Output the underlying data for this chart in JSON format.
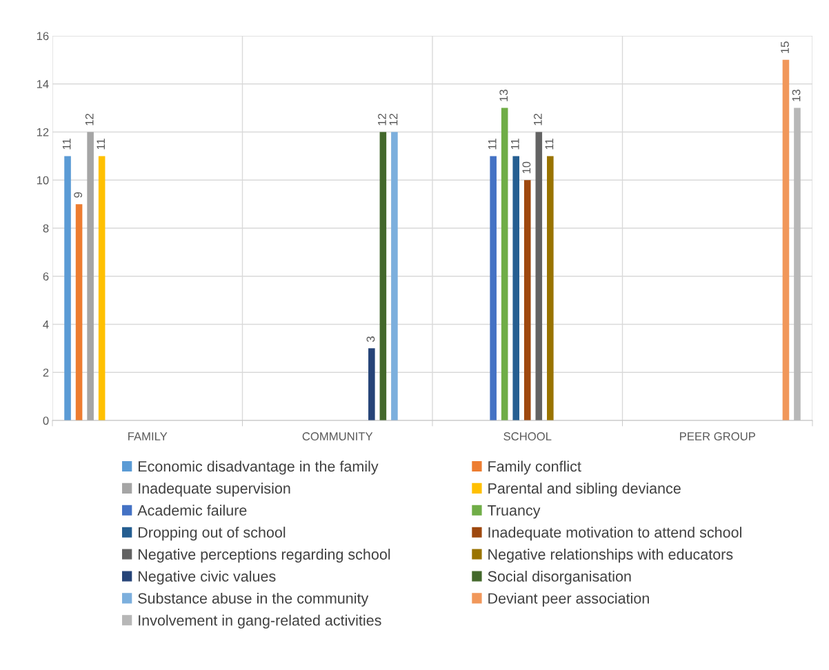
{
  "chart_data": {
    "type": "bar",
    "categories": [
      "FAMILY",
      "COMMUNITY",
      "SCHOOL",
      "PEER GROUP"
    ],
    "series": [
      {
        "name": "Economic disadvantage in the family",
        "color": "#5b9bd5",
        "values": [
          11,
          null,
          null,
          null
        ]
      },
      {
        "name": "Family conflict",
        "color": "#ed7d31",
        "values": [
          9,
          null,
          null,
          null
        ]
      },
      {
        "name": "Inadequate supervision",
        "color": "#a5a5a5",
        "values": [
          12,
          null,
          null,
          null
        ]
      },
      {
        "name": "Parental and sibling deviance",
        "color": "#ffc000",
        "values": [
          11,
          null,
          null,
          null
        ]
      },
      {
        "name": "Academic failure",
        "color": "#4472c4",
        "values": [
          null,
          null,
          11,
          null
        ]
      },
      {
        "name": "Truancy",
        "color": "#70ad47",
        "values": [
          null,
          null,
          13,
          null
        ]
      },
      {
        "name": "Dropping out of school",
        "color": "#255e91",
        "values": [
          null,
          null,
          11,
          null
        ]
      },
      {
        "name": "Inadequate motivation to attend school",
        "color": "#9e480e",
        "values": [
          null,
          null,
          10,
          null
        ]
      },
      {
        "name": "Negative perceptions regarding school",
        "color": "#636363",
        "values": [
          null,
          null,
          12,
          null
        ]
      },
      {
        "name": "Negative relationships with educators",
        "color": "#997300",
        "values": [
          null,
          null,
          11,
          null
        ]
      },
      {
        "name": "Negative civic values",
        "color": "#264478",
        "values": [
          null,
          3,
          null,
          null
        ]
      },
      {
        "name": "Social disorganisation",
        "color": "#43682b",
        "values": [
          null,
          12,
          null,
          null
        ]
      },
      {
        "name": "Substance abuse in the community",
        "color": "#7cafdd",
        "values": [
          null,
          12,
          null,
          null
        ]
      },
      {
        "name": "Deviant peer association",
        "color": "#f1975a",
        "values": [
          null,
          null,
          null,
          15
        ]
      },
      {
        "name": "Involvement in gang-related activities",
        "color": "#b7b7b7",
        "values": [
          null,
          null,
          null,
          13
        ]
      }
    ],
    "ylim": [
      0,
      16
    ],
    "yticks": [
      0,
      2,
      4,
      6,
      8,
      10,
      12,
      14,
      16
    ],
    "grid": true,
    "legend": "bottom",
    "data_labels": true
  }
}
